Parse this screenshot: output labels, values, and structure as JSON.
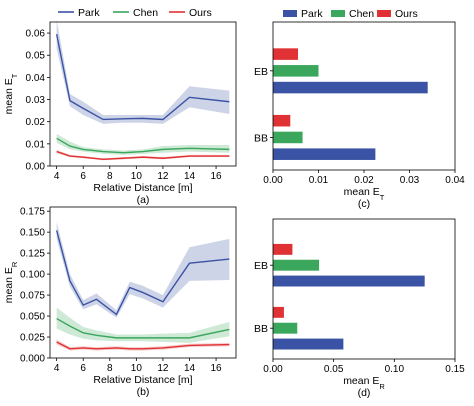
{
  "chart_data": [
    {
      "type": "line",
      "caption": "(a)",
      "xlabel": "Relative Distance [m]",
      "ylabel": "mean E",
      "ylabel_sub": "T",
      "xlim": [
        3.5,
        17.5
      ],
      "ylim": [
        0,
        0.065
      ],
      "xticks": [
        "4",
        "6",
        "8",
        "10",
        "12",
        "14",
        "16"
      ],
      "yticks": [
        "0.00",
        "0.01",
        "0.02",
        "0.03",
        "0.04",
        "0.05",
        "0.06"
      ],
      "legend": "top",
      "x": [
        4,
        5,
        6,
        7.5,
        9,
        10.5,
        12,
        14,
        17
      ],
      "series": [
        {
          "name": "Park",
          "color": "#3b53a4",
          "values": [
            0.0595,
            0.0295,
            0.026,
            0.021,
            0.0213,
            0.0215,
            0.021,
            0.031,
            0.029
          ],
          "band": [
            [
              0.053,
              0.066
            ],
            [
              0.027,
              0.0325
            ],
            [
              0.023,
              0.029
            ],
            [
              0.019,
              0.023
            ],
            [
              0.0195,
              0.023
            ],
            [
              0.0195,
              0.023
            ],
            [
              0.019,
              0.023
            ],
            [
              0.0265,
              0.036
            ],
            [
              0.0235,
              0.034
            ]
          ]
        },
        {
          "name": "Chen",
          "color": "#3aa75c",
          "values": [
            0.0125,
            0.009,
            0.0075,
            0.0065,
            0.006,
            0.0065,
            0.0075,
            0.008,
            0.0075
          ],
          "band": [
            [
              0.0105,
              0.0145
            ],
            [
              0.0075,
              0.011
            ],
            [
              0.0065,
              0.0085
            ],
            [
              0.0055,
              0.0075
            ],
            [
              0.005,
              0.007
            ],
            [
              0.0055,
              0.0075
            ],
            [
              0.006,
              0.009
            ],
            [
              0.0065,
              0.0095
            ],
            [
              0.006,
              0.0095
            ]
          ]
        },
        {
          "name": "Ours",
          "color": "#e03234",
          "values": [
            0.0065,
            0.0045,
            0.004,
            0.003,
            0.0035,
            0.004,
            0.0035,
            0.0045,
            0.0045
          ],
          "band": [
            [
              0.0058,
              0.0072
            ],
            [
              0.004,
              0.005
            ],
            [
              0.0035,
              0.0045
            ],
            [
              0.0026,
              0.0035
            ],
            [
              0.003,
              0.004
            ],
            [
              0.0035,
              0.0045
            ],
            [
              0.003,
              0.004
            ],
            [
              0.004,
              0.005
            ],
            [
              0.004,
              0.005
            ]
          ]
        }
      ]
    },
    {
      "type": "bar",
      "orientation": "horizontal",
      "caption": "(c)",
      "xlabel": "mean E",
      "xlabel_sub": "T",
      "xlim": [
        0,
        0.04
      ],
      "xticks": [
        "0.00",
        "0.01",
        "0.02",
        "0.03",
        "0.04"
      ],
      "categories": [
        "EB",
        "BB"
      ],
      "legend": "top",
      "series": [
        {
          "name": "Park",
          "color": "#3b53a4",
          "values": [
            0.034,
            0.0225
          ]
        },
        {
          "name": "Chen",
          "color": "#3aa75c",
          "values": [
            0.01,
            0.0065
          ]
        },
        {
          "name": "Ours",
          "color": "#e03234",
          "values": [
            0.0055,
            0.0038
          ]
        }
      ]
    },
    {
      "type": "line",
      "caption": "(b)",
      "xlabel": "Relative Distance [m]",
      "ylabel": "mean E",
      "ylabel_sub": "R",
      "xlim": [
        3.5,
        17.5
      ],
      "ylim": [
        0,
        0.18
      ],
      "xticks": [
        "4",
        "6",
        "8",
        "10",
        "12",
        "14",
        "16"
      ],
      "yticks": [
        "0.000",
        "0.025",
        "0.050",
        "0.075",
        "0.100",
        "0.125",
        "0.150",
        "0.175"
      ],
      "x": [
        4,
        5,
        6,
        7,
        8.5,
        9.5,
        10.5,
        12,
        14,
        17
      ],
      "series": [
        {
          "name": "Park",
          "color": "#3b53a4",
          "values": [
            0.152,
            0.092,
            0.063,
            0.07,
            0.052,
            0.084,
            0.078,
            0.067,
            0.113,
            0.118
          ],
          "band": [
            [
              0.142,
              0.162
            ],
            [
              0.085,
              0.1
            ],
            [
              0.058,
              0.069
            ],
            [
              0.064,
              0.077
            ],
            [
              0.048,
              0.057
            ],
            [
              0.076,
              0.091
            ],
            [
              0.071,
              0.086
            ],
            [
              0.06,
              0.075
            ],
            [
              0.092,
              0.132
            ],
            [
              0.093,
              0.142
            ]
          ]
        },
        {
          "name": "Chen",
          "color": "#3aa75c",
          "values": [
            0.047,
            0.038,
            0.03,
            0.027,
            0.024,
            0.024,
            0.024,
            0.024,
            0.024,
            0.034
          ],
          "band": [
            [
              0.035,
              0.06
            ],
            [
              0.028,
              0.048
            ],
            [
              0.023,
              0.037
            ],
            [
              0.021,
              0.033
            ],
            [
              0.02,
              0.028
            ],
            [
              0.02,
              0.028
            ],
            [
              0.02,
              0.028
            ],
            [
              0.019,
              0.029
            ],
            [
              0.018,
              0.03
            ],
            [
              0.026,
              0.043
            ]
          ]
        },
        {
          "name": "Ours",
          "color": "#e03234",
          "values": [
            0.019,
            0.011,
            0.012,
            0.011,
            0.012,
            0.011,
            0.011,
            0.012,
            0.015,
            0.016
          ],
          "band": [
            [
              0.016,
              0.022
            ],
            [
              0.009,
              0.013
            ],
            [
              0.01,
              0.014
            ],
            [
              0.009,
              0.013
            ],
            [
              0.01,
              0.014
            ],
            [
              0.009,
              0.013
            ],
            [
              0.009,
              0.013
            ],
            [
              0.01,
              0.014
            ],
            [
              0.013,
              0.017
            ],
            [
              0.014,
              0.018
            ]
          ]
        }
      ]
    },
    {
      "type": "bar",
      "orientation": "horizontal",
      "caption": "(d)",
      "xlabel": "mean E",
      "xlabel_sub": "R",
      "xlim": [
        0,
        0.15
      ],
      "xticks": [
        "0.00",
        "0.05",
        "0.10",
        "0.15"
      ],
      "categories": [
        "EB",
        "BB"
      ],
      "series": [
        {
          "name": "Park",
          "color": "#3b53a4",
          "values": [
            0.125,
            0.058
          ]
        },
        {
          "name": "Chen",
          "color": "#3aa75c",
          "values": [
            0.038,
            0.02
          ]
        },
        {
          "name": "Ours",
          "color": "#e03234",
          "values": [
            0.016,
            0.009
          ]
        }
      ]
    }
  ]
}
